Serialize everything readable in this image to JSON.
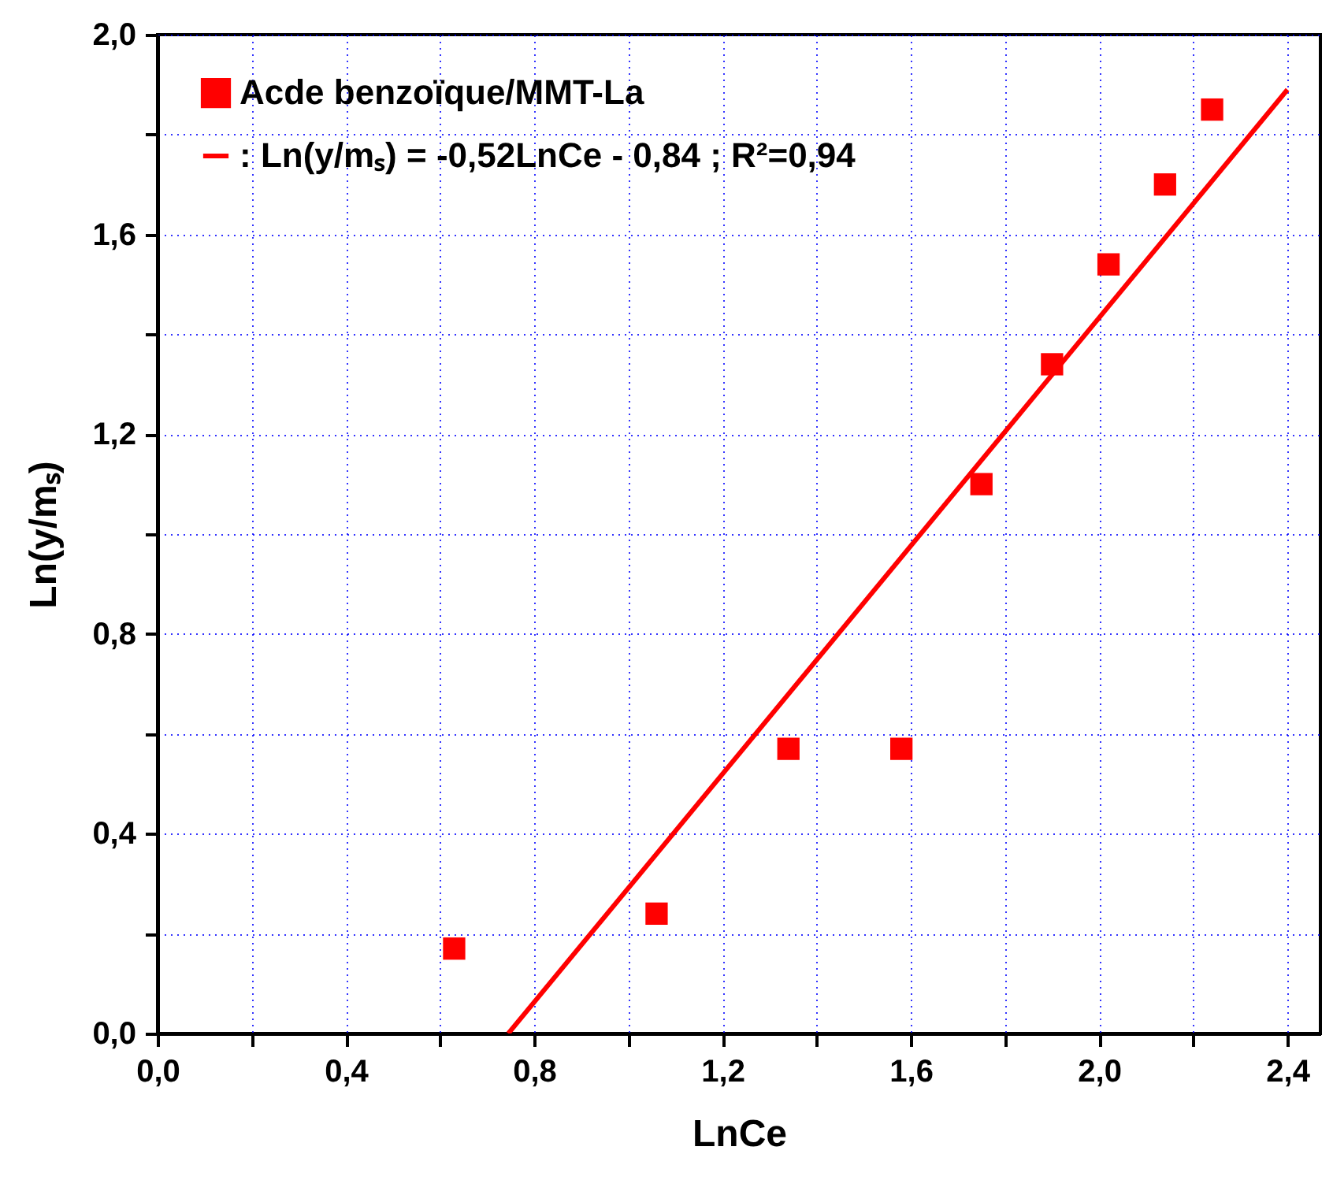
{
  "chart_data": {
    "type": "scatter",
    "xlabel": "LnCe",
    "ylabel": "Ln(y/mₛ)",
    "xlim": [
      0,
      2.47
    ],
    "ylim": [
      0,
      2
    ],
    "xticks": [
      {
        "value": 0,
        "label": "0,0"
      },
      {
        "value": 0.2,
        "label": null
      },
      {
        "value": 0.4,
        "label": "0,4"
      },
      {
        "value": 0.6,
        "label": null
      },
      {
        "value": 0.8,
        "label": "0,8"
      },
      {
        "value": 1.0,
        "label": null
      },
      {
        "value": 1.2,
        "label": "1,2"
      },
      {
        "value": 1.4,
        "label": null
      },
      {
        "value": 1.6,
        "label": "1,6"
      },
      {
        "value": 1.8,
        "label": null
      },
      {
        "value": 2.0,
        "label": "2,0"
      },
      {
        "value": 2.2,
        "label": null
      },
      {
        "value": 2.4,
        "label": "2,4"
      }
    ],
    "yticks": [
      {
        "value": 0,
        "label": "0,0"
      },
      {
        "value": 0.2,
        "label": null
      },
      {
        "value": 0.4,
        "label": "0,4"
      },
      {
        "value": 0.6,
        "label": null
      },
      {
        "value": 0.8,
        "label": "0,8"
      },
      {
        "value": 1.0,
        "label": null
      },
      {
        "value": 1.2,
        "label": "1,2"
      },
      {
        "value": 1.4,
        "label": null
      },
      {
        "value": 1.6,
        "label": "1,6"
      },
      {
        "value": 1.8,
        "label": null
      },
      {
        "value": 2.0,
        "label": "2,0"
      }
    ],
    "grid": true,
    "legend": "top left",
    "series": [
      {
        "name": "Acde benzoïque/MMT-La",
        "marker": "square",
        "color": "#ff0000",
        "x": [
          0.63,
          1.06,
          1.34,
          1.58,
          1.75,
          1.9,
          2.02,
          2.14,
          2.24
        ],
        "values": [
          0.17,
          0.24,
          0.57,
          0.57,
          1.1,
          1.34,
          1.54,
          1.7,
          1.85
        ]
      },
      {
        "name": ": Ln(y/mₛ) = -0,52LnCe - 0,84  ; R²=0,94",
        "type": "line",
        "marker": "none",
        "color": "#ff0000",
        "x": [
          0.745,
          2.4
        ],
        "values": [
          0,
          1.89
        ]
      }
    ]
  }
}
